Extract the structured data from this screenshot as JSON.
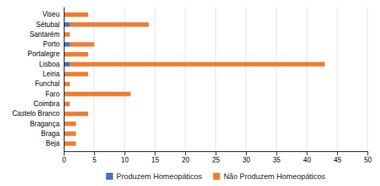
{
  "chart_data": {
    "type": "bar",
    "orientation": "horizontal",
    "stacked": true,
    "categories": [
      "Beja",
      "Braga",
      "Bragança",
      "Castelo Branco",
      "Coimbra",
      "Faro",
      "Funchal",
      "Leiria",
      "Lisboa",
      "Portalegre",
      "Porto",
      "Santarém",
      "Sétubal",
      "Viseu"
    ],
    "series": [
      {
        "name": "Produzem Homeopáticos",
        "color": "#4472C4",
        "values": [
          0,
          0,
          0,
          0,
          0,
          0,
          0,
          0,
          1,
          0,
          1,
          0,
          1,
          0
        ]
      },
      {
        "name": "Não Produzem Homeopáticos",
        "color": "#ED7D31",
        "values": [
          2,
          2,
          2,
          4,
          1,
          11,
          1,
          4,
          42,
          4,
          4,
          1,
          13,
          4
        ]
      }
    ],
    "xlim": [
      0,
      50
    ],
    "xticks": [
      0,
      5,
      10,
      15,
      20,
      25,
      30,
      35,
      40,
      45,
      50
    ],
    "grid": true,
    "legend": "bottom"
  }
}
